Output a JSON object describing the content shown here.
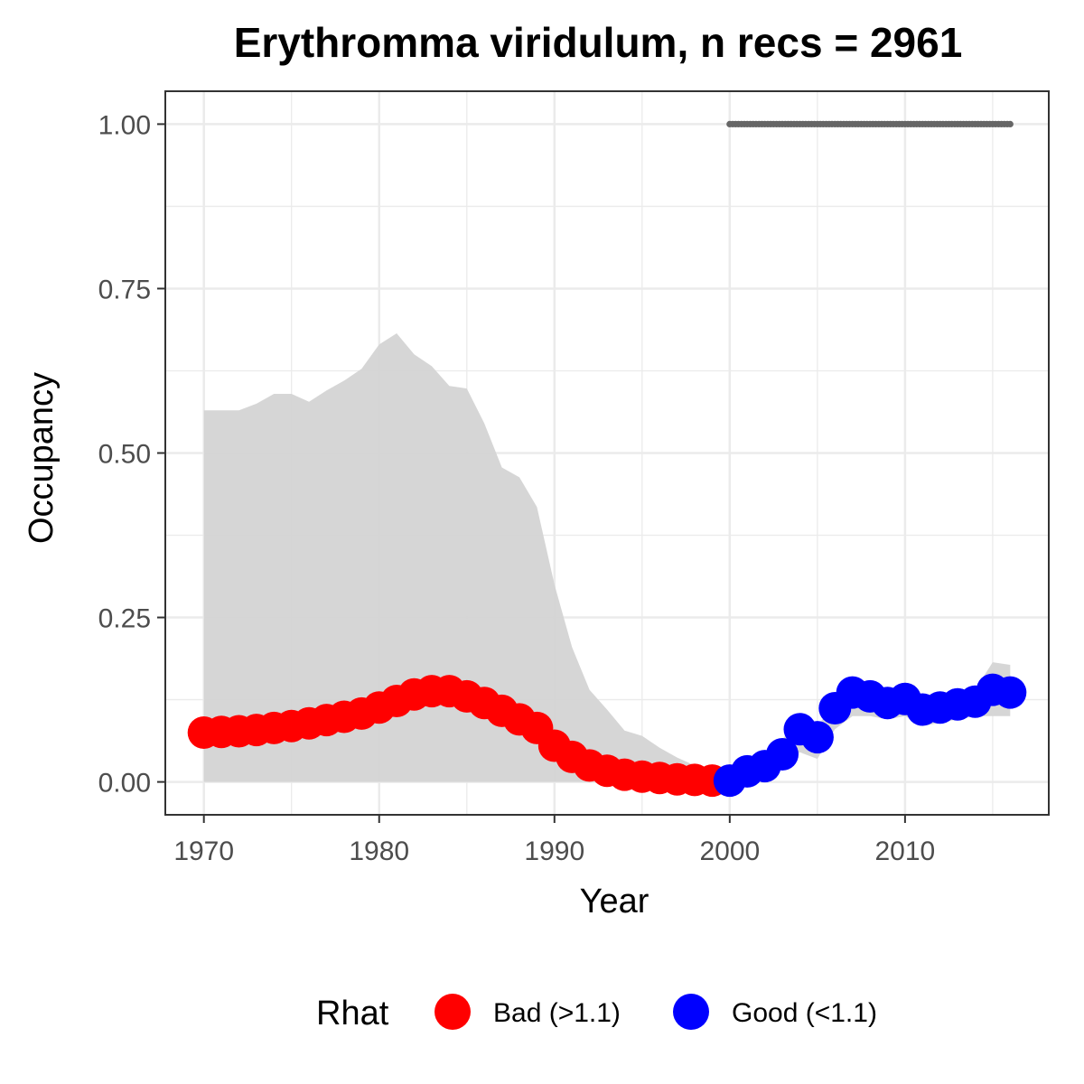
{
  "chart_data": {
    "type": "line",
    "title": "Erythromma viridulum, n recs = 2961",
    "xlabel": "Year",
    "ylabel": "Occupancy",
    "xlim": [
      1967.8,
      2018.2
    ],
    "ylim": [
      -0.05,
      1.05
    ],
    "grid": true,
    "x_ticks": [
      1970,
      1980,
      1990,
      2000,
      2010
    ],
    "x_tick_labels": [
      "1970",
      "1980",
      "1990",
      "2000",
      "2010"
    ],
    "y_ticks": [
      0,
      0.25,
      0.5,
      0.75,
      1.0
    ],
    "y_tick_labels": [
      "0.00",
      "0.25",
      "0.50",
      "0.75",
      "1.00"
    ],
    "legend": {
      "title": "Rhat",
      "placement": "bottom",
      "entries": [
        {
          "label": "Bad (>1.1)",
          "color": "#ff0000"
        },
        {
          "label": "Good (<1.1)",
          "color": "#0000ff"
        }
      ]
    },
    "colors": {
      "bad": "#ff0000",
      "good": "#0000ff",
      "ribbon": "#d4d4d4",
      "dotted": "#666666",
      "grid": "#ebebeb",
      "panel_border": "#333333"
    },
    "ribbon": {
      "x": [
        1970,
        1971,
        1972,
        1973,
        1974,
        1975,
        1976,
        1977,
        1978,
        1979,
        1980,
        1981,
        1982,
        1983,
        1984,
        1985,
        1986,
        1987,
        1988,
        1989,
        1990,
        1991,
        1992,
        1993,
        1994,
        1995,
        1996,
        1997,
        1998,
        1999,
        2000,
        2001,
        2002,
        2003,
        2004,
        2005,
        2006,
        2007,
        2008,
        2009,
        2010,
        2011,
        2012,
        2013,
        2014,
        2015,
        2016
      ],
      "upper": [
        0.565,
        0.565,
        0.565,
        0.575,
        0.59,
        0.59,
        0.578,
        0.595,
        0.61,
        0.628,
        0.665,
        0.682,
        0.65,
        0.632,
        0.602,
        0.598,
        0.545,
        0.478,
        0.463,
        0.418,
        0.3,
        0.205,
        0.14,
        0.11,
        0.078,
        0.07,
        0.052,
        0.037,
        0.025,
        0.016,
        0.022,
        0.035,
        0.045,
        0.065,
        0.095,
        0.085,
        0.12,
        0.148,
        0.142,
        0.132,
        0.138,
        0.122,
        0.128,
        0.132,
        0.14,
        0.182,
        0.178
      ],
      "lower": [
        0,
        0,
        0,
        0,
        0,
        0,
        0,
        0,
        0,
        0,
        0,
        0,
        0,
        0,
        0,
        0,
        0,
        0,
        0,
        0,
        0,
        0,
        0,
        0,
        0,
        0,
        0,
        0,
        0,
        0,
        0,
        0.008,
        0.01,
        0.02,
        0.045,
        0.035,
        0.08,
        0.1,
        0.1,
        0.095,
        0.1,
        0.085,
        0.09,
        0.095,
        0.1,
        0.1,
        0.1
      ]
    },
    "series": [
      {
        "x": [
          1970,
          1971,
          1972,
          1973,
          1974,
          1975,
          1976,
          1977,
          1978,
          1979,
          1980,
          1981,
          1982,
          1983,
          1984,
          1985,
          1986,
          1987,
          1988,
          1989,
          1990,
          1991,
          1992,
          1993,
          1994,
          1995,
          1996,
          1997,
          1998,
          1999,
          2000,
          2001,
          2002,
          2003,
          2004,
          2005,
          2006,
          2007,
          2008,
          2009,
          2010,
          2011,
          2012,
          2013,
          2014,
          2015,
          2016
        ],
        "values": [
          0.075,
          0.076,
          0.077,
          0.079,
          0.082,
          0.085,
          0.089,
          0.094,
          0.099,
          0.104,
          0.113,
          0.123,
          0.133,
          0.138,
          0.138,
          0.13,
          0.12,
          0.108,
          0.095,
          0.082,
          0.055,
          0.038,
          0.025,
          0.017,
          0.011,
          0.008,
          0.006,
          0.004,
          0.003,
          0.002,
          0.002,
          0.016,
          0.024,
          0.042,
          0.08,
          0.068,
          0.112,
          0.136,
          0.13,
          0.12,
          0.126,
          0.11,
          0.113,
          0.118,
          0.122,
          0.14,
          0.136
        ],
        "rhat": [
          "Bad",
          "Bad",
          "Bad",
          "Bad",
          "Bad",
          "Bad",
          "Bad",
          "Bad",
          "Bad",
          "Bad",
          "Bad",
          "Bad",
          "Bad",
          "Bad",
          "Bad",
          "Bad",
          "Bad",
          "Bad",
          "Bad",
          "Bad",
          "Bad",
          "Bad",
          "Bad",
          "Bad",
          "Bad",
          "Bad",
          "Bad",
          "Bad",
          "Bad",
          "Bad",
          "Good",
          "Good",
          "Good",
          "Good",
          "Good",
          "Good",
          "Good",
          "Good",
          "Good",
          "Good",
          "Good",
          "Good",
          "Good",
          "Good",
          "Good",
          "Good",
          "Good"
        ]
      }
    ],
    "dotted_line": {
      "x": [
        2000,
        2001,
        2002,
        2003,
        2004,
        2005,
        2006,
        2007,
        2008,
        2009,
        2010,
        2011,
        2012,
        2013,
        2014,
        2015,
        2016
      ],
      "values": [
        1,
        1,
        1,
        1,
        1,
        1,
        1,
        1,
        1,
        1,
        1,
        1,
        1,
        1,
        1,
        1,
        1
      ]
    }
  }
}
